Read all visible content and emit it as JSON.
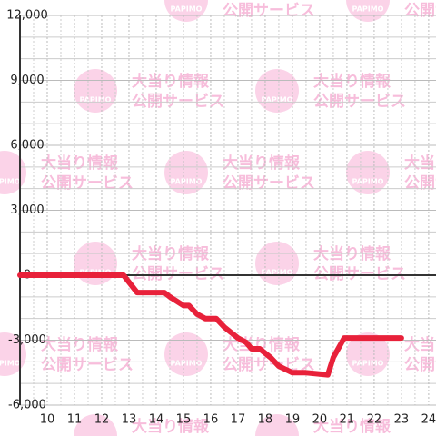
{
  "chart_data": {
    "type": "line",
    "x": [
      9,
      12.8,
      13.3,
      14.3,
      14.5,
      15,
      15.2,
      15.5,
      15.8,
      16.2,
      16.5,
      17,
      17.3,
      17.5,
      17.8,
      18.2,
      18.5,
      19,
      19.5,
      20.3,
      20.5,
      20.9,
      23
    ],
    "series": [
      {
        "color": "#e8213a",
        "values": [
          0,
          0,
          -800,
          -800,
          -1000,
          -1400,
          -1400,
          -1800,
          -2000,
          -2000,
          -2400,
          -2900,
          -3100,
          -3400,
          -3400,
          -3800,
          -4200,
          -4500,
          -4500,
          -4600,
          -3800,
          -2900,
          -2900
        ]
      }
    ],
    "xlim": [
      9,
      24.27
    ],
    "xticks": [
      10,
      11,
      12,
      13,
      14,
      15,
      16,
      17,
      18,
      19,
      20,
      21,
      22,
      23,
      24
    ],
    "minor_xticks": [
      9.5,
      10.5,
      11.5,
      12.5,
      13.5,
      14.5,
      15.5,
      16.5,
      17.5,
      18.5,
      19.5,
      20.5,
      21.5,
      22.5,
      23.5
    ],
    "ylim": [
      -6000,
      12000
    ],
    "yticks": [
      {
        "value": 12000,
        "label": "12,000"
      },
      {
        "value": 9000,
        "label": "9,000"
      },
      {
        "value": 6000,
        "label": "6,000"
      },
      {
        "value": 3000,
        "label": "3,000"
      },
      0,
      {
        "value": -3000,
        "label": "-3,000"
      },
      {
        "value": -6000,
        "label": "-6,000"
      }
    ],
    "minor_yticks": [
      11000,
      10000,
      8000,
      7000,
      5000,
      4000,
      2000,
      1000,
      -1000,
      -2000,
      -4000,
      -5000
    ],
    "grid": true,
    "watermark": {
      "logo": "PAPIMO",
      "line1": "大当り情報",
      "line2": "公開サービス"
    }
  }
}
